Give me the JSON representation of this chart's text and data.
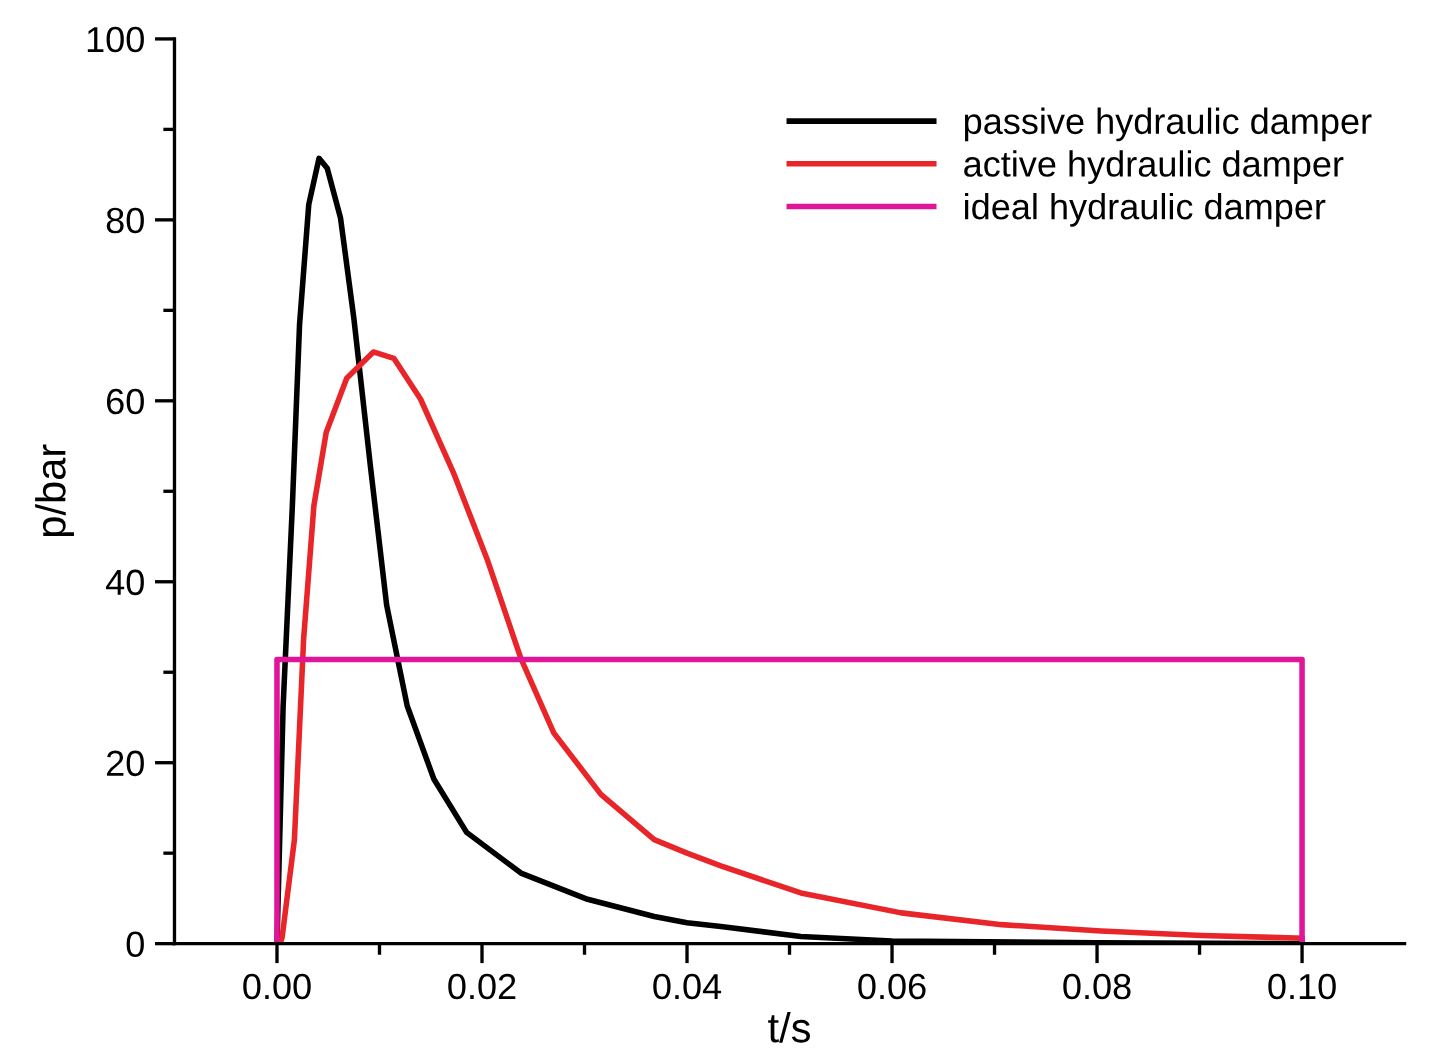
{
  "chart_data": {
    "type": "line",
    "xlabel": "t/s",
    "ylabel": "p/bar",
    "xlim": [
      -0.01,
      0.11
    ],
    "xticks": [
      {
        "value": 0,
        "label": "0.00"
      },
      {
        "value": 0.02,
        "label": "0.02"
      },
      {
        "value": 0.04,
        "label": "0.04"
      },
      {
        "value": 0.06,
        "label": "0.06"
      },
      {
        "value": 0.08,
        "label": "0.08"
      },
      {
        "value": 0.1,
        "label": "0.10"
      }
    ],
    "ylim": [
      0,
      100
    ],
    "yticks": [
      0,
      20,
      40,
      60,
      80,
      100
    ],
    "grid": false,
    "legend": "top right",
    "marker": "none",
    "line_style": "solid",
    "series": [
      {
        "name": "passive hydraulic damper",
        "color": "#000000",
        "x": [
          0,
          0.0006,
          0.0015,
          0.0022,
          0.0031,
          0.0041,
          0.0049,
          0.0062,
          0.0075,
          0.0091,
          0.0107,
          0.0127,
          0.0153,
          0.0185,
          0.0238,
          0.0303,
          0.0368,
          0.04,
          0.0433,
          0.0511,
          0.06,
          0.08,
          0.1
        ],
        "values": [
          0,
          26.3,
          48.4,
          68.4,
          81.7,
          86.8,
          85.7,
          80.2,
          69.1,
          52.9,
          37.4,
          26.3,
          18.2,
          12.3,
          7.8,
          4.9,
          3.0,
          2.3,
          1.9,
          0.8,
          0.3,
          0.1,
          0
        ]
      },
      {
        "name": "active hydraulic damper",
        "color": "#e8262a",
        "x": [
          0.0003,
          0.0005,
          0.0017,
          0.0026,
          0.0036,
          0.0048,
          0.0068,
          0.0094,
          0.0114,
          0.014,
          0.0172,
          0.0205,
          0.0238,
          0.027,
          0.0316,
          0.0368,
          0.04,
          0.0433,
          0.0511,
          0.0609,
          0.0707,
          0.0804,
          0.0902,
          0.1
        ],
        "values": [
          0,
          0.7,
          11.5,
          33.7,
          48.4,
          56.5,
          62.5,
          65.4,
          64.7,
          60.2,
          52.1,
          42.5,
          31.5,
          23.3,
          16.5,
          11.5,
          10.0,
          8.6,
          5.6,
          3.4,
          2.1,
          1.4,
          0.9,
          0.6
        ]
      },
      {
        "name": "ideal hydraulic damper",
        "color": "#e0169a",
        "x": [
          0,
          0,
          0.1,
          0.1
        ],
        "values": [
          0,
          31.4,
          31.4,
          0
        ]
      }
    ]
  }
}
